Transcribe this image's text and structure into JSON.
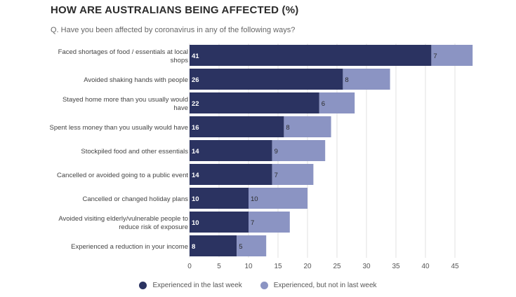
{
  "title": "HOW ARE AUSTRALIANS BEING AFFECTED (%)",
  "subtitle": "Q. Have you been affected by coronavirus in any of the following ways?",
  "colors": {
    "last_week": "#2b3361",
    "not_last_week": "#8b94c3",
    "grid": "#e2e2e2",
    "label": "#444444"
  },
  "chart_data": {
    "type": "bar",
    "orientation": "horizontal",
    "stacked": true,
    "categories": [
      [
        "Faced shortages of food / essentials at local",
        "shops"
      ],
      [
        "Avoided shaking hands with people"
      ],
      [
        "Stayed home more than you usually would",
        "have"
      ],
      [
        "Spent less money than you usually would have"
      ],
      [
        "Stockpiled food and other essentials"
      ],
      [
        "Cancelled or avoided going to a public event"
      ],
      [
        "Cancelled or changed holiday plans"
      ],
      [
        "Avoided visiting elderly/vulnerable people to",
        "reduce risk of exposure"
      ],
      [
        "Experienced a reduction in your income"
      ]
    ],
    "series": [
      {
        "name": "Experienced in the last week",
        "color_key": "last_week",
        "values": [
          41,
          26,
          22,
          16,
          14,
          14,
          10,
          10,
          8
        ]
      },
      {
        "name": "Experienced, but not in last week",
        "color_key": "not_last_week",
        "values": [
          7,
          8,
          6,
          8,
          9,
          7,
          10,
          7,
          5
        ]
      }
    ],
    "xlim": [
      0,
      50
    ],
    "xticks": [
      0,
      5,
      10,
      15,
      20,
      25,
      30,
      35,
      40,
      45
    ],
    "grid": true,
    "legend": "bottom-center"
  }
}
